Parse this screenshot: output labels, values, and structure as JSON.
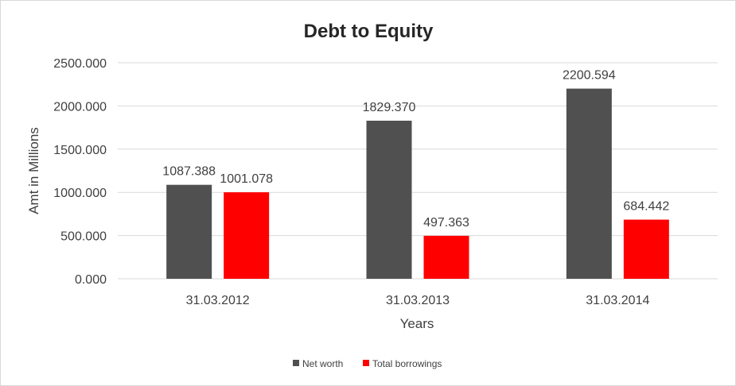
{
  "chart_data": {
    "type": "bar",
    "title": "Debt to Equity",
    "xlabel": "Years",
    "ylabel": "Amt in Millions",
    "categories": [
      "31.03.2012",
      "31.03.2013",
      "31.03.2014"
    ],
    "series": [
      {
        "name": "Net worth",
        "color": "#505050",
        "values": [
          1087.388,
          1829.37,
          2200.594
        ],
        "labels": [
          "1087.388",
          "1829.370",
          "2200.594"
        ]
      },
      {
        "name": "Total borrowings",
        "color": "#ff0000",
        "values": [
          1001.078,
          497.363,
          684.442
        ],
        "labels": [
          "1001.078",
          "497.363",
          "684.442"
        ]
      }
    ],
    "ylim": [
      0,
      2500
    ],
    "yticks": [
      {
        "value": 0,
        "label": "0.000"
      },
      {
        "value": 500,
        "label": "500.000"
      },
      {
        "value": 1000,
        "label": "1000.000"
      },
      {
        "value": 1500,
        "label": "1500.000"
      },
      {
        "value": 2000,
        "label": "2000.000"
      },
      {
        "value": 2500,
        "label": "2500.000"
      }
    ],
    "grid": true,
    "legend_position": "bottom"
  }
}
